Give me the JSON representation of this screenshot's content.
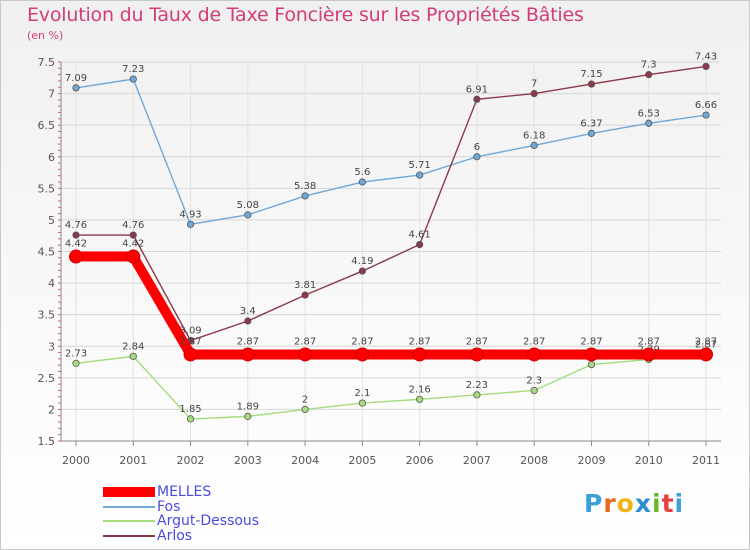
{
  "chart_data": {
    "type": "line",
    "title": "Evolution du Taux de Taxe Foncière sur les Propriétés Bâties",
    "subtitle": "(en %)",
    "xlabel": "",
    "ylabel": "(en %)",
    "ylim": [
      1.5,
      7.5
    ],
    "yticks": [
      1.5,
      2,
      2.5,
      3,
      3.5,
      4,
      4.5,
      5,
      5.5,
      6,
      6.5,
      7,
      7.5
    ],
    "ytick_labels": [
      "1.5",
      "2",
      "2.5",
      "3",
      "3.5",
      "4",
      "4.5",
      "5",
      "5.5",
      "6",
      "6.5",
      "7",
      "7.5"
    ],
    "categories": [
      "2000",
      "2001",
      "2002",
      "2003",
      "2004",
      "2005",
      "2006",
      "2007",
      "2008",
      "2009",
      "2010",
      "2011"
    ],
    "series": [
      {
        "name": "MELLES",
        "color": "#ff0000",
        "values": [
          4.42,
          4.42,
          2.87,
          2.87,
          2.87,
          2.87,
          2.87,
          2.87,
          2.87,
          2.87,
          2.87,
          2.87
        ],
        "labels": [
          "4.42",
          "4.42",
          "2.87",
          "2.87",
          "2.87",
          "2.87",
          "2.87",
          "2.87",
          "2.87",
          "2.87",
          "2.87",
          "2.87"
        ]
      },
      {
        "name": "Fos",
        "color": "#6ea8d8",
        "values": [
          7.09,
          7.23,
          4.93,
          5.08,
          5.38,
          5.6,
          5.71,
          6,
          6.18,
          6.37,
          6.53,
          6.66
        ],
        "labels": [
          "7.09",
          "7.23",
          "4.93",
          "5.08",
          "5.38",
          "5.6",
          "5.71",
          "6",
          "6.18",
          "6.37",
          "6.53",
          "6.66"
        ]
      },
      {
        "name": "Argut-Dessous",
        "color": "#a6dc7e",
        "values": [
          2.73,
          2.84,
          1.85,
          1.89,
          2,
          2.1,
          2.16,
          2.23,
          2.3,
          2.71,
          2.79,
          2.87
        ],
        "labels": [
          "2.73",
          "2.84",
          "1.85",
          "1.89",
          "2",
          "2.1",
          "2.16",
          "2.23",
          "2.3",
          "2.71",
          "2.79",
          "2.87"
        ]
      },
      {
        "name": "Arlos",
        "color": "#8a3a4a",
        "values": [
          4.76,
          4.76,
          3.09,
          3.4,
          3.81,
          4.19,
          4.61,
          6.91,
          7,
          7.15,
          7.3,
          7.43
        ],
        "labels": [
          "4.76",
          "4.76",
          "3.09",
          "3.4",
          "3.81",
          "4.19",
          "4.61",
          "6.91",
          "7",
          "7.15",
          "7.3",
          "7.43"
        ]
      }
    ],
    "legend": [
      "MELLES",
      "Fos",
      "Argut-Dessous",
      "Arlos"
    ],
    "legend_position": "bottom-left",
    "grid": true
  },
  "logo_text": [
    "P",
    "r",
    "o",
    "x",
    "i",
    "t",
    "i"
  ]
}
